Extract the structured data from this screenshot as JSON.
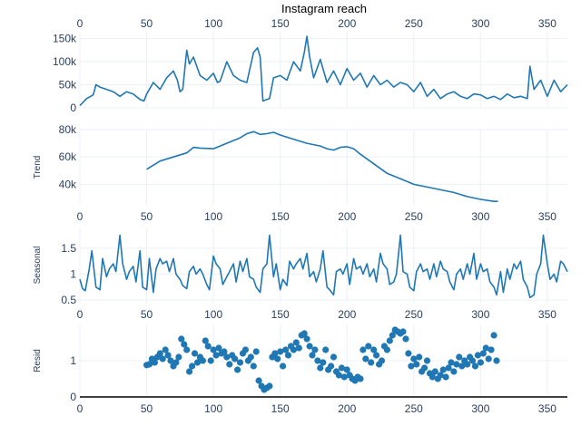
{
  "chart_data": {
    "type": "line",
    "title": "Instagram reach",
    "panels": [
      {
        "name": "reach",
        "ylabel": "",
        "type": "line",
        "xlim": [
          0,
          365
        ],
        "ylim": [
          0,
          165000
        ],
        "x_ticks": [
          "0",
          "50",
          "100",
          "150",
          "200",
          "250",
          "300",
          "350"
        ],
        "x_tick_position": "top",
        "y_ticks": [
          {
            "value": 0,
            "label": "0"
          },
          {
            "value": 50000,
            "label": "50k"
          },
          {
            "value": 100000,
            "label": "100k"
          },
          {
            "value": 150000,
            "label": "150k"
          }
        ],
        "x": [
          0,
          5,
          10,
          12,
          15,
          20,
          25,
          30,
          35,
          40,
          45,
          48,
          50,
          55,
          60,
          65,
          70,
          73,
          75,
          77,
          80,
          82,
          85,
          90,
          95,
          100,
          103,
          105,
          110,
          115,
          120,
          125,
          130,
          133,
          135,
          137,
          140,
          142,
          145,
          150,
          155,
          160,
          165,
          168,
          170,
          172,
          175,
          180,
          185,
          190,
          195,
          200,
          205,
          210,
          215,
          220,
          225,
          230,
          235,
          240,
          245,
          250,
          255,
          260,
          265,
          270,
          275,
          280,
          285,
          290,
          295,
          300,
          305,
          310,
          315,
          320,
          325,
          330,
          335,
          337,
          340,
          345,
          350,
          355,
          360,
          365
        ],
        "values": [
          5000,
          20000,
          28000,
          50000,
          45000,
          40000,
          35000,
          25000,
          35000,
          30000,
          18000,
          15000,
          30000,
          55000,
          40000,
          65000,
          80000,
          60000,
          35000,
          40000,
          125000,
          95000,
          110000,
          70000,
          60000,
          75000,
          55000,
          58000,
          100000,
          70000,
          60000,
          55000,
          120000,
          130000,
          110000,
          15000,
          18000,
          20000,
          65000,
          70000,
          60000,
          100000,
          80000,
          120000,
          155000,
          110000,
          65000,
          105000,
          55000,
          80000,
          50000,
          85000,
          60000,
          75000,
          45000,
          70000,
          50000,
          60000,
          45000,
          55000,
          50000,
          35000,
          55000,
          25000,
          40000,
          20000,
          30000,
          35000,
          25000,
          20000,
          30000,
          28000,
          20000,
          25000,
          18000,
          30000,
          22000,
          25000,
          20000,
          90000,
          40000,
          60000,
          25000,
          60000,
          35000,
          50000
        ]
      },
      {
        "name": "trend",
        "ylabel": "Trend",
        "type": "line",
        "xlim": [
          0,
          365
        ],
        "ylim": [
          25000,
          80000
        ],
        "x_ticks": [
          "0",
          "50",
          "100",
          "150",
          "200",
          "250",
          "300",
          "350"
        ],
        "y_ticks": [
          {
            "value": 40000,
            "label": "40k"
          },
          {
            "value": 60000,
            "label": "60k"
          },
          {
            "value": 80000,
            "label": "80k"
          }
        ],
        "x": [
          50,
          60,
          70,
          80,
          85,
          90,
          100,
          110,
          120,
          125,
          130,
          135,
          140,
          145,
          150,
          160,
          170,
          180,
          185,
          190,
          195,
          200,
          205,
          210,
          220,
          230,
          240,
          250,
          260,
          270,
          280,
          290,
          300,
          310,
          313
        ],
        "values": [
          51000,
          57000,
          60000,
          63000,
          67000,
          66500,
          66000,
          70000,
          74000,
          77000,
          78500,
          76500,
          77000,
          78000,
          76000,
          73000,
          70000,
          68000,
          66000,
          65000,
          67000,
          67500,
          66000,
          62000,
          55000,
          48000,
          44000,
          40000,
          38000,
          36000,
          34000,
          31000,
          29000,
          27500,
          27500
        ]
      },
      {
        "name": "seasonal",
        "ylabel": "Seasonal",
        "type": "line",
        "xlim": [
          0,
          365
        ],
        "ylim": [
          0.45,
          1.9
        ],
        "x_ticks": [
          "0",
          "50",
          "100",
          "150",
          "200",
          "250",
          "300",
          "350"
        ],
        "y_ticks": [
          {
            "value": 0.5,
            "label": "0.5"
          },
          {
            "value": 1,
            "label": "1"
          },
          {
            "value": 1.5,
            "label": "1.5"
          }
        ],
        "x": [
          0,
          2,
          4,
          7,
          9,
          12,
          15,
          17,
          20,
          22,
          25,
          27,
          30,
          32,
          35,
          37,
          40,
          42,
          45,
          47,
          50,
          52,
          55,
          57,
          60,
          62,
          65,
          67,
          70,
          72,
          75,
          77,
          80,
          82,
          85,
          87,
          90,
          92,
          95,
          97,
          100,
          102,
          105,
          107,
          110,
          112,
          115,
          117,
          120,
          122,
          125,
          127,
          130,
          132,
          135,
          137,
          140,
          142,
          145,
          147,
          150,
          152,
          155,
          157,
          160,
          162,
          165,
          167,
          170,
          172,
          175,
          177,
          180,
          182,
          185,
          187,
          190,
          192,
          195,
          197,
          200,
          202,
          205,
          207,
          210,
          212,
          215,
          217,
          220,
          222,
          225,
          227,
          230,
          232,
          235,
          237,
          240,
          242,
          245,
          247,
          250,
          252,
          255,
          257,
          260,
          262,
          265,
          267,
          270,
          272,
          275,
          277,
          280,
          282,
          285,
          287,
          290,
          292,
          295,
          297,
          300,
          302,
          305,
          307,
          310,
          312,
          315,
          317,
          320,
          322,
          325,
          327,
          330,
          332,
          335,
          337,
          340,
          342,
          345,
          347,
          350,
          352,
          355,
          357,
          360,
          362,
          365
        ],
        "values": [
          0.9,
          0.72,
          0.68,
          1.1,
          1.45,
          0.75,
          0.7,
          1.3,
          0.95,
          1.1,
          1.2,
          1.05,
          1.75,
          1.2,
          0.9,
          1.05,
          1.15,
          0.85,
          1.45,
          0.75,
          0.7,
          1.3,
          0.65,
          1.1,
          1.3,
          1.2,
          1.25,
          1.05,
          1.3,
          1.0,
          0.9,
          0.78,
          0.72,
          1.05,
          1.15,
          1.0,
          1.1,
          1.0,
          0.8,
          0.7,
          1.35,
          1.2,
          1.1,
          0.8,
          0.95,
          1.05,
          1.2,
          0.85,
          1.25,
          1.05,
          1.3,
          0.95,
          0.9,
          0.75,
          0.65,
          1.1,
          1.2,
          1.75,
          0.95,
          1.2,
          0.7,
          0.9,
          0.78,
          1.25,
          1.1,
          1.2,
          1.3,
          1.1,
          1.4,
          0.95,
          1.05,
          0.85,
          1.1,
          1.45,
          0.75,
          0.7,
          0.6,
          1.05,
          1.1,
          1.0,
          1.2,
          0.8,
          1.3,
          1.1,
          1.15,
          1.0,
          1.2,
          0.95,
          1.1,
          0.85,
          1.4,
          1.2,
          1.1,
          0.8,
          0.85,
          1.0,
          1.75,
          1.05,
          1.0,
          0.75,
          0.68,
          1.05,
          1.2,
          1.05,
          1.1,
          0.9,
          1.2,
          0.95,
          1.25,
          1.1,
          1.05,
          0.85,
          0.7,
          1.0,
          1.1,
          0.9,
          1.2,
          1.0,
          1.4,
          0.9,
          1.2,
          1.05,
          1.1,
          0.85,
          0.75,
          0.6,
          1.05,
          0.65,
          1.1,
          0.9,
          1.2,
          1.1,
          1.25,
          0.9,
          0.75,
          0.55,
          0.6,
          1.0,
          1.2,
          1.75,
          1.2,
          0.9,
          1.0,
          0.85,
          1.25,
          1.2,
          1.05
        ]
      },
      {
        "name": "resid",
        "ylabel": "Resid",
        "type": "scatter",
        "xlim": [
          0,
          365
        ],
        "ylim": [
          0,
          2.0
        ],
        "x_ticks": [
          "0",
          "50",
          "100",
          "150",
          "200",
          "250",
          "300",
          "350"
        ],
        "y_ticks": [
          {
            "value": 0,
            "label": "0"
          },
          {
            "value": 1,
            "label": "1"
          }
        ],
        "x": [
          50,
          52,
          54,
          56,
          58,
          60,
          62,
          64,
          66,
          68,
          70,
          72,
          74,
          76,
          78,
          80,
          82,
          84,
          86,
          88,
          90,
          92,
          94,
          96,
          98,
          100,
          102,
          104,
          106,
          108,
          110,
          112,
          114,
          116,
          118,
          120,
          122,
          124,
          126,
          128,
          130,
          132,
          134,
          136,
          138,
          140,
          142,
          144,
          146,
          148,
          150,
          152,
          154,
          156,
          158,
          160,
          162,
          164,
          166,
          168,
          170,
          172,
          174,
          176,
          178,
          180,
          182,
          184,
          186,
          188,
          190,
          192,
          194,
          196,
          198,
          200,
          202,
          204,
          206,
          208,
          210,
          212,
          214,
          216,
          218,
          220,
          222,
          224,
          226,
          228,
          230,
          232,
          234,
          236,
          238,
          240,
          242,
          244,
          246,
          248,
          250,
          252,
          254,
          256,
          258,
          260,
          262,
          264,
          266,
          268,
          270,
          272,
          274,
          276,
          278,
          280,
          282,
          284,
          286,
          288,
          290,
          292,
          294,
          296,
          298,
          300,
          302,
          304,
          306,
          308,
          310,
          312
        ],
        "values": [
          0.88,
          0.9,
          1.05,
          0.95,
          1.1,
          1.2,
          1.05,
          1.3,
          1.15,
          1.0,
          0.85,
          0.95,
          1.1,
          1.6,
          1.45,
          1.3,
          0.7,
          0.85,
          1.2,
          0.95,
          1.1,
          1.0,
          1.55,
          1.4,
          1.0,
          1.3,
          1.15,
          1.35,
          1.2,
          1.25,
          1.1,
          0.9,
          1.15,
          1.05,
          0.75,
          0.95,
          1.2,
          1.3,
          1.0,
          1.1,
          0.85,
          1.25,
          0.45,
          0.3,
          0.2,
          0.25,
          0.3,
          1.1,
          1.2,
          1.05,
          1.25,
          0.85,
          1.3,
          1.15,
          1.4,
          1.3,
          1.5,
          1.35,
          1.7,
          1.75,
          1.6,
          1.4,
          1.15,
          1.3,
          1.0,
          0.8,
          0.95,
          1.3,
          0.75,
          0.85,
          1.1,
          0.7,
          0.6,
          0.8,
          0.55,
          0.75,
          0.6,
          0.5,
          0.45,
          0.55,
          0.5,
          1.3,
          1.05,
          1.4,
          0.95,
          1.3,
          1.15,
          0.9,
          1.0,
          1.4,
          1.3,
          1.55,
          1.7,
          1.85,
          1.8,
          1.75,
          1.8,
          1.6,
          1.2,
          0.85,
          1.05,
          0.9,
          1.1,
          0.7,
          0.8,
          1.0,
          0.65,
          0.55,
          0.7,
          0.5,
          0.6,
          0.75,
          0.55,
          0.8,
          0.95,
          0.7,
          0.9,
          1.1,
          0.85,
          1.0,
          0.9,
          1.1,
          1.0,
          0.85,
          1.15,
          0.95,
          1.2,
          1.35,
          1.05,
          1.3,
          1.7,
          1.0
        ]
      }
    ]
  }
}
